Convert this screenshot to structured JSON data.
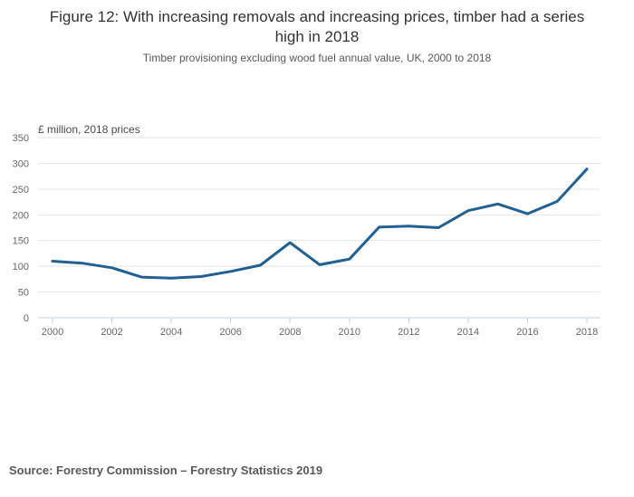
{
  "title": "Figure 12: With increasing removals and increasing prices, timber had a series high in 2018",
  "subtitle": "Timber provisioning excluding wood fuel annual value, UK, 2000 to 2018",
  "source": "Source: Forestry Commission – Forestry Statistics 2019",
  "colors": {
    "line": "#206095",
    "grid": "#e6e6e6",
    "axis": "#c5d3de",
    "tick_label": "#666666",
    "title": "#333333",
    "subtitle": "#595959",
    "source": "#595959"
  },
  "chart_data": {
    "type": "line",
    "title": "Figure 12: With increasing removals and increasing prices, timber had a series high in 2018",
    "subtitle": "Timber provisioning excluding wood fuel annual value, UK, 2000 to 2018",
    "series_name": "Timber provisioning excluding wood fuel annual value",
    "x": [
      2000,
      2001,
      2002,
      2003,
      2004,
      2005,
      2006,
      2007,
      2008,
      2009,
      2010,
      2011,
      2012,
      2013,
      2014,
      2015,
      2016,
      2017,
      2018
    ],
    "values": [
      110,
      106,
      97,
      79,
      77,
      80,
      90,
      102,
      146,
      103,
      114,
      176,
      178,
      175,
      208,
      221,
      202,
      226,
      289
    ],
    "xlabel": "",
    "ylabel": "£ million, 2018 prices",
    "ylim": [
      0,
      350
    ],
    "yticks": [
      0,
      50,
      100,
      150,
      200,
      250,
      300,
      350
    ],
    "xticks": [
      2000,
      2002,
      2004,
      2006,
      2008,
      2010,
      2012,
      2014,
      2016,
      2018
    ],
    "grid": true,
    "legend": false
  }
}
